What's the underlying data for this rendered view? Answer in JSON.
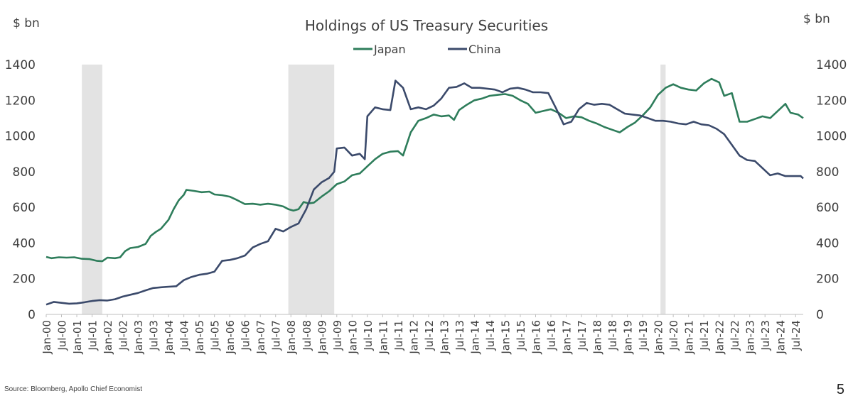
{
  "chart_data": {
    "type": "line",
    "title": "Holdings of US Treasury Securities",
    "ylabel_left": "$ bn",
    "ylabel_right": "$ bn",
    "ylim": [
      0,
      1400
    ],
    "yticks": [
      0,
      200,
      400,
      600,
      800,
      1000,
      1200,
      1400
    ],
    "x_range": [
      "2000-01",
      "2024-10"
    ],
    "xtick_labels": [
      "Jan-00",
      "Jul-00",
      "Jan-01",
      "Jul-01",
      "Jan-02",
      "Jul-02",
      "Jan-03",
      "Jul-03",
      "Jan-04",
      "Jul-04",
      "Jan-05",
      "Jul-05",
      "Jan-06",
      "Jul-06",
      "Jan-07",
      "Jul-07",
      "Jan-08",
      "Jul-08",
      "Jan-09",
      "Jul-09",
      "Jan-10",
      "Jul-10",
      "Jan-11",
      "Jul-11",
      "Jan-12",
      "Jul-12",
      "Jan-13",
      "Jul-13",
      "Jan-14",
      "Jul-14",
      "Jan-15",
      "Jul-15",
      "Jan-16",
      "Jul-16",
      "Jan-17",
      "Jul-17",
      "Jan-18",
      "Jul-18",
      "Jan-19",
      "Jul-19",
      "Jan-20",
      "Jul-20",
      "Jan-21",
      "Jul-21",
      "Jan-22",
      "Jul-22",
      "Jan-23",
      "Jul-23",
      "Jan-24",
      "Jul-24"
    ],
    "recessions": [
      {
        "start": "2001-03",
        "end": "2001-11"
      },
      {
        "start": "2007-12",
        "end": "2009-06"
      },
      {
        "start": "2020-02",
        "end": "2020-04"
      }
    ],
    "legend": [
      "Japan",
      "China"
    ],
    "series": [
      {
        "name": "Japan",
        "color": "#2e7d5b",
        "points": [
          [
            "2000-01",
            322
          ],
          [
            "2000-03",
            315
          ],
          [
            "2000-06",
            320
          ],
          [
            "2000-09",
            318
          ],
          [
            "2000-12",
            320
          ],
          [
            "2001-03",
            312
          ],
          [
            "2001-06",
            310
          ],
          [
            "2001-09",
            300
          ],
          [
            "2001-11",
            298
          ],
          [
            "2002-01",
            318
          ],
          [
            "2002-04",
            315
          ],
          [
            "2002-06",
            320
          ],
          [
            "2002-08",
            355
          ],
          [
            "2002-10",
            372
          ],
          [
            "2003-01",
            378
          ],
          [
            "2003-04",
            395
          ],
          [
            "2003-06",
            440
          ],
          [
            "2003-08",
            462
          ],
          [
            "2003-10",
            480
          ],
          [
            "2004-01",
            530
          ],
          [
            "2004-03",
            590
          ],
          [
            "2004-05",
            640
          ],
          [
            "2004-07",
            670
          ],
          [
            "2004-08",
            698
          ],
          [
            "2004-11",
            692
          ],
          [
            "2005-02",
            685
          ],
          [
            "2005-05",
            688
          ],
          [
            "2005-07",
            672
          ],
          [
            "2005-10",
            668
          ],
          [
            "2006-01",
            660
          ],
          [
            "2006-04",
            640
          ],
          [
            "2006-07",
            618
          ],
          [
            "2006-10",
            620
          ],
          [
            "2007-01",
            615
          ],
          [
            "2007-04",
            620
          ],
          [
            "2007-07",
            615
          ],
          [
            "2007-10",
            605
          ],
          [
            "2007-12",
            590
          ],
          [
            "2008-02",
            582
          ],
          [
            "2008-04",
            590
          ],
          [
            "2008-06",
            630
          ],
          [
            "2008-08",
            622
          ],
          [
            "2008-10",
            626
          ],
          [
            "2009-01",
            660
          ],
          [
            "2009-04",
            690
          ],
          [
            "2009-07",
            730
          ],
          [
            "2009-10",
            745
          ],
          [
            "2010-01",
            780
          ],
          [
            "2010-04",
            790
          ],
          [
            "2010-07",
            830
          ],
          [
            "2010-10",
            870
          ],
          [
            "2011-01",
            900
          ],
          [
            "2011-04",
            912
          ],
          [
            "2011-07",
            915
          ],
          [
            "2011-09",
            890
          ],
          [
            "2011-12",
            1020
          ],
          [
            "2012-03",
            1085
          ],
          [
            "2012-06",
            1100
          ],
          [
            "2012-09",
            1120
          ],
          [
            "2012-12",
            1110
          ],
          [
            "2013-03",
            1115
          ],
          [
            "2013-05",
            1090
          ],
          [
            "2013-07",
            1145
          ],
          [
            "2013-10",
            1175
          ],
          [
            "2014-01",
            1200
          ],
          [
            "2014-04",
            1210
          ],
          [
            "2014-07",
            1225
          ],
          [
            "2014-10",
            1230
          ],
          [
            "2015-01",
            1235
          ],
          [
            "2015-04",
            1225
          ],
          [
            "2015-07",
            1200
          ],
          [
            "2015-10",
            1180
          ],
          [
            "2016-01",
            1130
          ],
          [
            "2016-04",
            1140
          ],
          [
            "2016-07",
            1150
          ],
          [
            "2016-10",
            1130
          ],
          [
            "2017-01",
            1100
          ],
          [
            "2017-04",
            1110
          ],
          [
            "2017-07",
            1105
          ],
          [
            "2017-10",
            1085
          ],
          [
            "2018-01",
            1070
          ],
          [
            "2018-04",
            1050
          ],
          [
            "2018-07",
            1035
          ],
          [
            "2018-10",
            1020
          ],
          [
            "2019-01",
            1050
          ],
          [
            "2019-04",
            1075
          ],
          [
            "2019-07",
            1115
          ],
          [
            "2019-10",
            1160
          ],
          [
            "2020-01",
            1230
          ],
          [
            "2020-04",
            1270
          ],
          [
            "2020-07",
            1290
          ],
          [
            "2020-10",
            1270
          ],
          [
            "2021-01",
            1260
          ],
          [
            "2021-04",
            1255
          ],
          [
            "2021-07",
            1295
          ],
          [
            "2021-10",
            1320
          ],
          [
            "2022-01",
            1300
          ],
          [
            "2022-03",
            1225
          ],
          [
            "2022-06",
            1240
          ],
          [
            "2022-09",
            1080
          ],
          [
            "2022-12",
            1080
          ],
          [
            "2023-03",
            1095
          ],
          [
            "2023-06",
            1110
          ],
          [
            "2023-09",
            1100
          ],
          [
            "2023-12",
            1140
          ],
          [
            "2024-03",
            1180
          ],
          [
            "2024-05",
            1130
          ],
          [
            "2024-08",
            1120
          ],
          [
            "2024-10",
            1100
          ]
        ]
      },
      {
        "name": "China",
        "color": "#3b4a6b",
        "points": [
          [
            "2000-01",
            55
          ],
          [
            "2000-04",
            70
          ],
          [
            "2000-07",
            65
          ],
          [
            "2000-10",
            60
          ],
          [
            "2001-01",
            62
          ],
          [
            "2001-04",
            68
          ],
          [
            "2001-07",
            75
          ],
          [
            "2001-10",
            80
          ],
          [
            "2002-01",
            78
          ],
          [
            "2002-04",
            85
          ],
          [
            "2002-07",
            100
          ],
          [
            "2002-10",
            110
          ],
          [
            "2003-01",
            120
          ],
          [
            "2003-04",
            135
          ],
          [
            "2003-07",
            148
          ],
          [
            "2003-10",
            152
          ],
          [
            "2004-01",
            155
          ],
          [
            "2004-04",
            158
          ],
          [
            "2004-07",
            192
          ],
          [
            "2004-10",
            210
          ],
          [
            "2005-01",
            222
          ],
          [
            "2005-04",
            228
          ],
          [
            "2005-07",
            240
          ],
          [
            "2005-10",
            300
          ],
          [
            "2006-01",
            305
          ],
          [
            "2006-04",
            315
          ],
          [
            "2006-07",
            330
          ],
          [
            "2006-10",
            375
          ],
          [
            "2007-01",
            395
          ],
          [
            "2007-04",
            410
          ],
          [
            "2007-07",
            480
          ],
          [
            "2007-10",
            465
          ],
          [
            "2008-01",
            490
          ],
          [
            "2008-04",
            510
          ],
          [
            "2008-07",
            590
          ],
          [
            "2008-10",
            700
          ],
          [
            "2009-01",
            740
          ],
          [
            "2009-04",
            765
          ],
          [
            "2009-06",
            800
          ],
          [
            "2009-07",
            930
          ],
          [
            "2009-10",
            935
          ],
          [
            "2010-01",
            890
          ],
          [
            "2010-04",
            900
          ],
          [
            "2010-06",
            870
          ],
          [
            "2010-07",
            1110
          ],
          [
            "2010-10",
            1160
          ],
          [
            "2011-01",
            1150
          ],
          [
            "2011-04",
            1145
          ],
          [
            "2011-06",
            1310
          ],
          [
            "2011-09",
            1270
          ],
          [
            "2011-12",
            1150
          ],
          [
            "2012-03",
            1160
          ],
          [
            "2012-06",
            1150
          ],
          [
            "2012-09",
            1170
          ],
          [
            "2012-12",
            1210
          ],
          [
            "2013-03",
            1270
          ],
          [
            "2013-06",
            1275
          ],
          [
            "2013-09",
            1295
          ],
          [
            "2013-12",
            1270
          ],
          [
            "2014-03",
            1270
          ],
          [
            "2014-06",
            1265
          ],
          [
            "2014-09",
            1260
          ],
          [
            "2014-12",
            1245
          ],
          [
            "2015-03",
            1265
          ],
          [
            "2015-06",
            1270
          ],
          [
            "2015-09",
            1260
          ],
          [
            "2015-12",
            1245
          ],
          [
            "2016-03",
            1245
          ],
          [
            "2016-06",
            1240
          ],
          [
            "2016-09",
            1155
          ],
          [
            "2016-12",
            1065
          ],
          [
            "2017-03",
            1080
          ],
          [
            "2017-06",
            1150
          ],
          [
            "2017-09",
            1185
          ],
          [
            "2017-12",
            1175
          ],
          [
            "2018-03",
            1180
          ],
          [
            "2018-06",
            1175
          ],
          [
            "2018-09",
            1150
          ],
          [
            "2018-12",
            1125
          ],
          [
            "2019-03",
            1120
          ],
          [
            "2019-06",
            1115
          ],
          [
            "2019-09",
            1100
          ],
          [
            "2019-12",
            1085
          ],
          [
            "2020-03",
            1085
          ],
          [
            "2020-06",
            1080
          ],
          [
            "2020-09",
            1070
          ],
          [
            "2020-12",
            1065
          ],
          [
            "2021-03",
            1080
          ],
          [
            "2021-06",
            1065
          ],
          [
            "2021-09",
            1060
          ],
          [
            "2021-12",
            1040
          ],
          [
            "2022-03",
            1010
          ],
          [
            "2022-06",
            950
          ],
          [
            "2022-09",
            890
          ],
          [
            "2022-12",
            865
          ],
          [
            "2023-03",
            860
          ],
          [
            "2023-06",
            820
          ],
          [
            "2023-09",
            780
          ],
          [
            "2023-12",
            790
          ],
          [
            "2024-03",
            775
          ],
          [
            "2024-06",
            775
          ],
          [
            "2024-09",
            775
          ],
          [
            "2024-10",
            762
          ]
        ]
      }
    ]
  },
  "footer": {
    "source": "Source: Bloomberg, Apollo Chief Economist",
    "page_number": "5"
  }
}
